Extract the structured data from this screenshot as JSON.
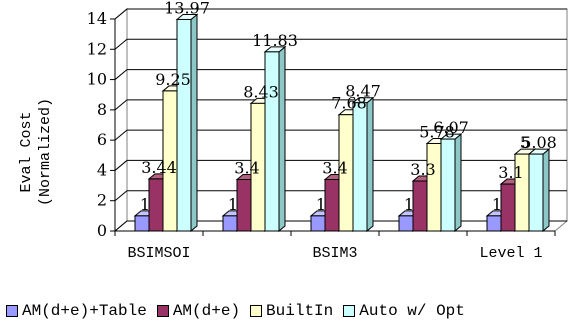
{
  "chart_data": {
    "type": "bar",
    "ylabel": "Eval Cost",
    "ylabel2": "(Normalized)",
    "ylim": [
      0,
      14
    ],
    "yticks": [
      "0",
      "2",
      "4",
      "6",
      "8",
      "10",
      "12",
      "14"
    ],
    "yticks_values": [
      0,
      2,
      4,
      6,
      8,
      10,
      12,
      14
    ],
    "categories": [
      "BSIMSOI",
      "",
      "BSIM3",
      "",
      "Level 1"
    ],
    "series": [
      {
        "name": "AM(d+e)+Table",
        "values": [
          1,
          1,
          1,
          1,
          1
        ],
        "labels": [
          "1",
          "1",
          "1",
          "1",
          "1"
        ]
      },
      {
        "name": "AM(d+e)",
        "values": [
          3.44,
          3.4,
          3.4,
          3.3,
          3.1
        ],
        "labels": [
          "3.44",
          "3.4",
          "3.4",
          "3.3",
          "3.1"
        ]
      },
      {
        "name": "BuiltIn",
        "values": [
          9.25,
          8.43,
          7.68,
          5.78,
          5.08
        ],
        "labels": [
          "9.25",
          "8.43",
          "7.68",
          "5.78",
          "5"
        ]
      },
      {
        "name": "Auto w/ Opt",
        "values": [
          13.97,
          11.83,
          8.47,
          6.07,
          5.08
        ],
        "labels": [
          "13.97",
          "11.83",
          "8.47",
          "6.07",
          "5.08"
        ]
      }
    ],
    "grid": true,
    "legend_position": "bottom"
  },
  "colors": {
    "front": [
      "#9999ff",
      "#993366",
      "#ffffcc",
      "#ccffff"
    ],
    "side": [
      "#5a5ab0",
      "#5e1f3f",
      "#c8c890",
      "#8cc8c8"
    ],
    "top": [
      "#c4c4ff",
      "#b4607f",
      "#ffffe8",
      "#e8ffff"
    ]
  }
}
